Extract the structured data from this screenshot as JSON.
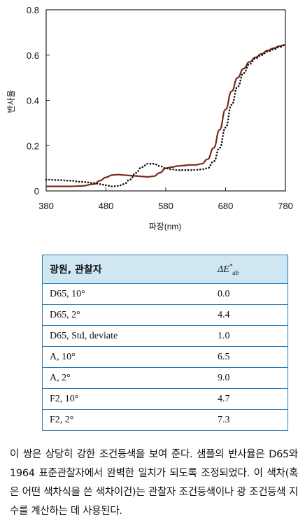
{
  "chart_data": {
    "type": "line",
    "title": "",
    "xlabel": "파장(nm)",
    "ylabel": "반사율",
    "xlim": [
      380,
      780
    ],
    "ylim": [
      0,
      0.8
    ],
    "xticks": [
      380,
      480,
      580,
      680,
      780
    ],
    "yticks": [
      0,
      0.2,
      0.4,
      0.6,
      0.8
    ],
    "ytick_labels": [
      "0",
      "0.2",
      "0.4",
      "0.6",
      "0.8"
    ],
    "grid": false,
    "series": [
      {
        "style": "solid",
        "color": "#7a2a1e",
        "x": [
          380,
          400,
          420,
          440,
          460,
          470,
          480,
          490,
          500,
          510,
          520,
          530,
          540,
          550,
          560,
          570,
          580,
          590,
          600,
          610,
          620,
          630,
          640,
          650,
          660,
          670,
          680,
          690,
          700,
          710,
          720,
          730,
          740,
          750,
          760,
          770,
          780
        ],
        "y": [
          0.02,
          0.02,
          0.02,
          0.022,
          0.03,
          0.045,
          0.06,
          0.07,
          0.072,
          0.07,
          0.068,
          0.066,
          0.064,
          0.062,
          0.065,
          0.08,
          0.1,
          0.105,
          0.11,
          0.112,
          0.115,
          0.115,
          0.12,
          0.14,
          0.19,
          0.27,
          0.36,
          0.44,
          0.5,
          0.54,
          0.57,
          0.59,
          0.605,
          0.62,
          0.63,
          0.64,
          0.645
        ]
      },
      {
        "style": "dotted",
        "color": "#111111",
        "x": [
          380,
          400,
          420,
          440,
          460,
          470,
          480,
          490,
          500,
          510,
          520,
          530,
          540,
          550,
          560,
          570,
          580,
          590,
          600,
          610,
          620,
          630,
          640,
          650,
          660,
          670,
          680,
          690,
          700,
          710,
          720,
          730,
          740,
          750,
          760,
          770,
          780
        ],
        "y": [
          0.05,
          0.048,
          0.045,
          0.04,
          0.035,
          0.03,
          0.025,
          0.02,
          0.022,
          0.03,
          0.05,
          0.08,
          0.105,
          0.12,
          0.12,
          0.11,
          0.1,
          0.095,
          0.092,
          0.092,
          0.092,
          0.093,
          0.095,
          0.1,
          0.13,
          0.19,
          0.28,
          0.38,
          0.46,
          0.52,
          0.56,
          0.585,
          0.6,
          0.615,
          0.625,
          0.635,
          0.645
        ]
      }
    ]
  },
  "table": {
    "header_illuminant": "광원, 관찰자",
    "header_de_main": "ΔE",
    "header_de_sup": "*",
    "header_de_sub": "ab",
    "rows": [
      {
        "label": "D65, 10°",
        "value": "0.0"
      },
      {
        "label": "D65, 2°",
        "value": "4.4"
      },
      {
        "label": "D65, Std, deviate",
        "value": "1.0"
      },
      {
        "label": "A, 10°",
        "value": "6.5"
      },
      {
        "label": "A, 2°",
        "value": "9.0"
      },
      {
        "label": "F2, 10°",
        "value": "4.7"
      },
      {
        "label": "F2, 2°",
        "value": "7.3"
      }
    ]
  },
  "caption": "이 쌍은 상당히 강한 조건등색을 보여 준다. 샘플의 반사율은 D65와 1964 표준관찰자에서 완벽한 일치가 되도록 조정되었다. 이 색차(혹은 어떤 색차식을 쓴 색차이건)는 관찰자 조건등색이나 광 조건등색 지수를 계산하는 데 사용된다."
}
